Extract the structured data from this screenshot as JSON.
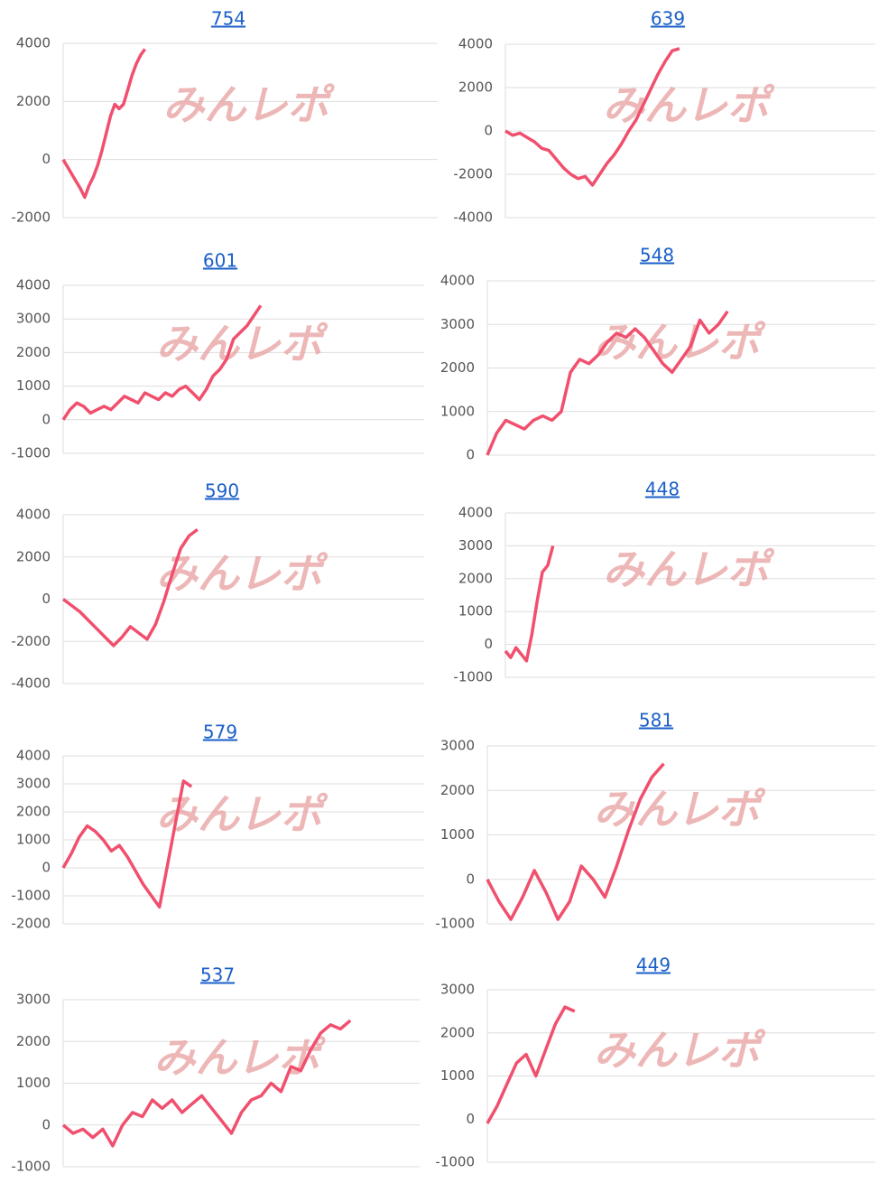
{
  "watermark": "みんレポ",
  "chart_data": [
    {
      "type": "line",
      "title": "754",
      "color": "#f0506e",
      "grid": true,
      "xlim": [
        0,
        87
      ],
      "ylim": [
        -2000,
        4000
      ],
      "yticks": [
        -2000,
        0,
        2000,
        4000
      ],
      "values": [
        0,
        -250,
        -500,
        -750,
        -1000,
        -1300,
        -900,
        -600,
        -200,
        300,
        900,
        1500,
        1900,
        1750,
        1900,
        2400,
        2900,
        3300,
        3600,
        3800
      ]
    },
    {
      "type": "line",
      "title": "639",
      "color": "#f0506e",
      "grid": true,
      "xlim": [
        0,
        51
      ],
      "ylim": [
        -4000,
        4000
      ],
      "yticks": [
        -4000,
        -2000,
        0,
        2000,
        4000
      ],
      "values": [
        0,
        -200,
        -100,
        -300,
        -500,
        -800,
        -900,
        -1300,
        -1700,
        -2000,
        -2200,
        -2100,
        -2500,
        -2000,
        -1500,
        -1100,
        -600,
        0,
        500,
        1200,
        1900,
        2600,
        3200,
        3700,
        3800
      ]
    },
    {
      "type": "line",
      "title": "601",
      "color": "#f0506e",
      "grid": true,
      "xlim": [
        0,
        53
      ],
      "ylim": [
        -1000,
        4000
      ],
      "yticks": [
        -1000,
        0,
        1000,
        2000,
        3000,
        4000
      ],
      "values": [
        0,
        300,
        500,
        400,
        200,
        300,
        400,
        300,
        500,
        700,
        600,
        500,
        800,
        700,
        600,
        800,
        700,
        900,
        1000,
        800,
        600,
        900,
        1300,
        1500,
        1800,
        2400,
        2600,
        2800,
        3100,
        3400
      ]
    },
    {
      "type": "line",
      "title": "548",
      "color": "#f0506e",
      "grid": true,
      "xlim": [
        0,
        42
      ],
      "ylim": [
        0,
        4000
      ],
      "yticks": [
        0,
        1000,
        2000,
        3000,
        4000
      ],
      "values": [
        0,
        500,
        800,
        700,
        600,
        800,
        900,
        800,
        1000,
        1900,
        2200,
        2100,
        2300,
        2600,
        2800,
        2700,
        2900,
        2700,
        2400,
        2100,
        1900,
        2200,
        2500,
        3100,
        2800,
        3000,
        3300
      ]
    },
    {
      "type": "line",
      "title": "590",
      "color": "#f0506e",
      "grid": true,
      "xlim": [
        0,
        43
      ],
      "ylim": [
        -4000,
        4000
      ],
      "yticks": [
        -4000,
        -2000,
        0,
        2000,
        4000
      ],
      "values": [
        0,
        -300,
        -600,
        -1000,
        -1400,
        -1800,
        -2200,
        -1800,
        -1300,
        -1600,
        -1900,
        -1200,
        -100,
        1200,
        2400,
        3000,
        3300
      ]
    },
    {
      "type": "line",
      "title": "448",
      "color": "#f0506e",
      "grid": true,
      "xlim": [
        0,
        70
      ],
      "ylim": [
        -1000,
        4000
      ],
      "yticks": [
        -1000,
        0,
        1000,
        2000,
        3000,
        4000
      ],
      "values": [
        -200,
        -400,
        -100,
        -300,
        -500,
        300,
        1300,
        2200,
        2400,
        3000
      ]
    },
    {
      "type": "line",
      "title": "579",
      "color": "#f0506e",
      "grid": true,
      "xlim": [
        0,
        45
      ],
      "ylim": [
        -2000,
        4000
      ],
      "yticks": [
        -2000,
        -1000,
        0,
        1000,
        2000,
        3000,
        4000
      ],
      "values": [
        0,
        500,
        1100,
        1500,
        1300,
        1000,
        600,
        800,
        400,
        -100,
        -600,
        -1000,
        -1400,
        100,
        1600,
        3100,
        2900
      ]
    },
    {
      "type": "line",
      "title": "581",
      "color": "#f0506e",
      "grid": true,
      "xlim": [
        0,
        33
      ],
      "ylim": [
        -1000,
        3000
      ],
      "yticks": [
        -1000,
        0,
        1000,
        2000,
        3000
      ],
      "values": [
        0,
        -500,
        -900,
        -400,
        200,
        -300,
        -900,
        -500,
        300,
        0,
        -400,
        300,
        1100,
        1800,
        2300,
        2600
      ]
    },
    {
      "type": "line",
      "title": "537",
      "color": "#f0506e",
      "grid": true,
      "xlim": [
        0,
        36
      ],
      "ylim": [
        -1000,
        3000
      ],
      "yticks": [
        -1000,
        0,
        1000,
        2000,
        3000
      ],
      "values": [
        0,
        -200,
        -100,
        -300,
        -100,
        -500,
        0,
        300,
        200,
        600,
        400,
        600,
        300,
        500,
        700,
        400,
        100,
        -200,
        300,
        600,
        700,
        1000,
        800,
        1400,
        1300,
        1800,
        2200,
        2400,
        2300,
        2500
      ]
    },
    {
      "type": "line",
      "title": "449",
      "color": "#f0506e",
      "grid": true,
      "xlim": [
        0,
        40
      ],
      "ylim": [
        -1000,
        3000
      ],
      "yticks": [
        -1000,
        0,
        1000,
        2000,
        3000
      ],
      "values": [
        -100,
        300,
        800,
        1300,
        1500,
        1000,
        1600,
        2200,
        2600,
        2500
      ]
    }
  ]
}
